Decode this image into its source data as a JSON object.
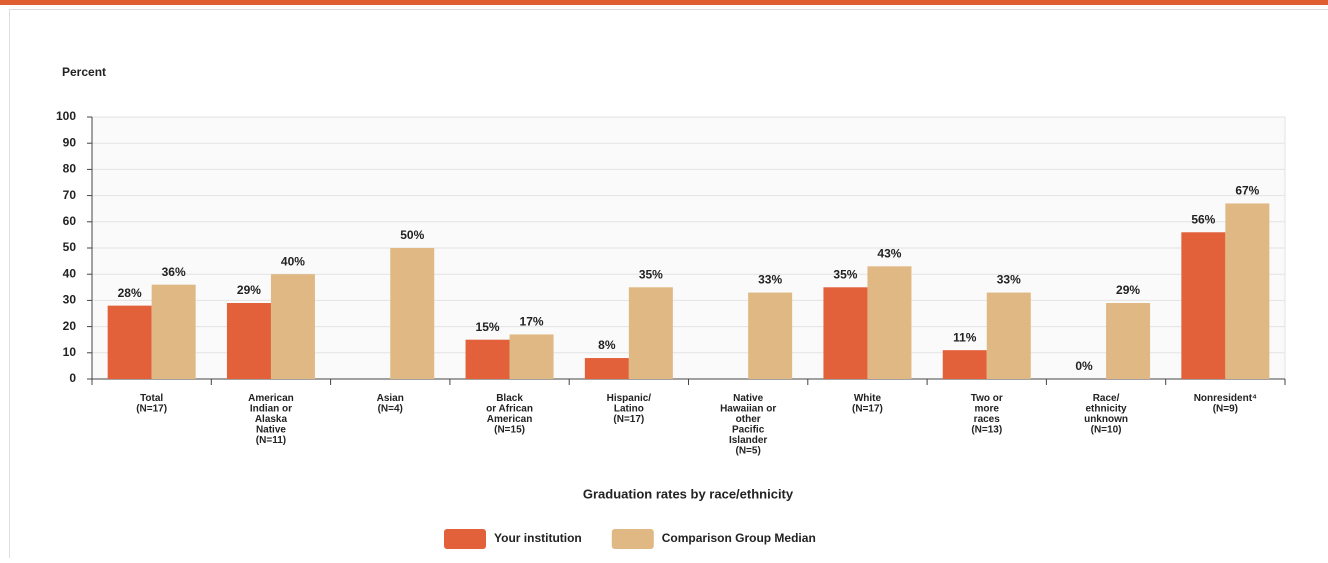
{
  "chart_data": {
    "type": "bar",
    "y_axis_label": "Percent",
    "x_axis_label": "Graduation rates by race/ethnicity",
    "categories": [
      [
        "Total",
        "(N=17)"
      ],
      [
        "American",
        "Indian or",
        "Alaska",
        "Native",
        "(N=11)"
      ],
      [
        "Asian",
        "(N=4)"
      ],
      [
        "Black",
        "or African",
        "American",
        "(N=15)"
      ],
      [
        "Hispanic/",
        "Latino",
        "(N=17)"
      ],
      [
        "Native",
        "Hawaiian or",
        "other",
        "Pacific",
        "Islander",
        "(N=5)"
      ],
      [
        "White",
        "(N=17)"
      ],
      [
        "Two or",
        "more",
        "races",
        "(N=13)"
      ],
      [
        "Race/",
        "ethnicity",
        "unknown",
        "(N=10)"
      ],
      [
        "Nonresident⁴",
        "(N=9)"
      ]
    ],
    "series": [
      {
        "name": "Your institution",
        "color": "#e2603a",
        "values": [
          28,
          29,
          null,
          15,
          8,
          null,
          35,
          11,
          0,
          56
        ],
        "value_labels": [
          "28%",
          "29%",
          null,
          "15%",
          "8%",
          null,
          "35%",
          "11%",
          "0%",
          "56%"
        ]
      },
      {
        "name": "Comparison Group Median",
        "color": "#e0b883",
        "values": [
          36,
          40,
          50,
          17,
          35,
          33,
          43,
          33,
          29,
          67
        ],
        "value_labels": [
          "36%",
          "40%",
          "50%",
          "17%",
          "35%",
          "33%",
          "43%",
          "33%",
          "29%",
          "67%"
        ]
      }
    ],
    "ylim": [
      0,
      100
    ],
    "yticks": [
      0,
      10,
      20,
      30,
      40,
      50,
      60,
      70,
      80,
      90,
      100
    ],
    "grid": true
  }
}
